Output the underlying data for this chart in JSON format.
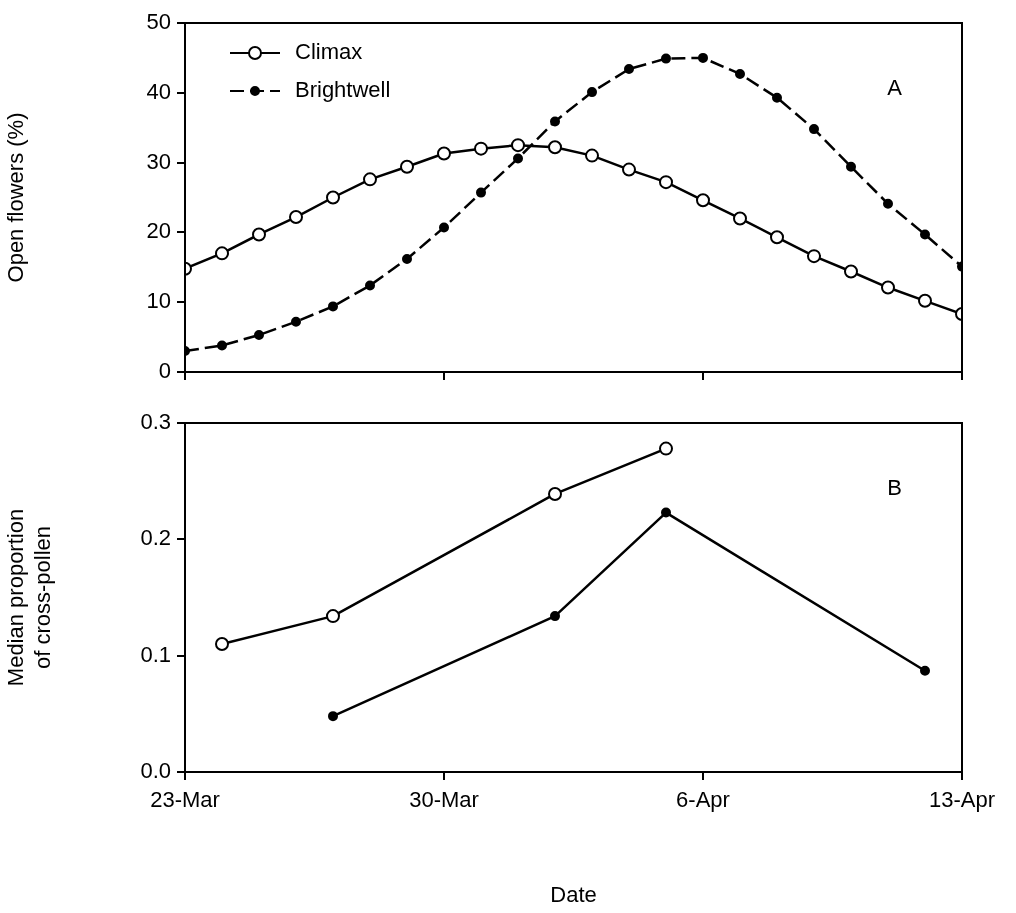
{
  "chart_data": [
    {
      "type": "line",
      "ylabel": "Open flowers (%)",
      "annotations": [
        "A"
      ],
      "legend": "top left",
      "marker": "circle",
      "grid": false,
      "tick_labels": "y",
      "x": [
        "--03-23",
        "--03-24",
        "--03-25",
        "--03-26",
        "--03-27",
        "--03-28",
        "--03-29",
        "--03-30",
        "--03-31",
        "--04-01",
        "--04-02",
        "--04-03",
        "--04-04",
        "--04-05",
        "--04-06",
        "--04-07",
        "--04-08",
        "--04-09",
        "--04-10",
        "--04-11",
        "--04-12",
        "--04-13"
      ],
      "xlim": [
        "--03-23",
        "--04-13"
      ],
      "xticks": [
        {
          "value": "--03-23",
          "label": null
        },
        {
          "value": "--03-30",
          "label": null
        },
        {
          "value": "--04-06",
          "label": null
        },
        {
          "value": "--04-13",
          "label": null
        }
      ],
      "ylim": [
        0,
        50
      ],
      "yticks": [
        0,
        10,
        20,
        30,
        40,
        50
      ],
      "series": [
        {
          "name": "Climax",
          "color": "#000000",
          "line_style": "solid",
          "values": [
            14.8,
            17,
            19.7,
            22.2,
            25,
            27.6,
            29.4,
            31.3,
            32,
            32.5,
            32.2,
            31,
            29,
            27.2,
            24.6,
            22,
            19.3,
            16.6,
            14.4,
            12.1,
            10.2,
            8.3
          ]
        },
        {
          "name": "Brightwell",
          "color": "#000000",
          "line_style": "dashed",
          "values": [
            3,
            3.8,
            5.3,
            7.2,
            9.4,
            12.4,
            16.2,
            20.7,
            25.7,
            30.6,
            35.9,
            40.1,
            43.4,
            44.9,
            45,
            42.7,
            39.3,
            34.8,
            29.4,
            24.1,
            19.7,
            15.1
          ]
        }
      ]
    },
    {
      "type": "line",
      "xlabel": "Date",
      "ylabel": "Median proportion of cross-pollen",
      "annotations": [
        "B"
      ],
      "legend": false,
      "marker": "circle",
      "grid": false,
      "xlim": [
        "--03-23",
        "--04-13"
      ],
      "xticks": [
        {
          "value": "--03-23",
          "label": "23-Mar"
        },
        {
          "value": "--03-30",
          "label": "30-Mar"
        },
        {
          "value": "--04-06",
          "label": "6-Apr"
        },
        {
          "value": "--04-13",
          "label": "13-Apr"
        }
      ],
      "ylim": [
        0,
        0.3
      ],
      "yticks": [
        {
          "value": 0,
          "label": "0.0"
        },
        0.1,
        0.2,
        0.3
      ],
      "series": [
        {
          "color": "#000000",
          "line_style": "solid",
          "x": [
            "--03-24",
            "--03-27",
            "--04-02",
            "--04-05"
          ],
          "values": [
            0.11,
            0.134,
            0.239,
            0.278
          ]
        },
        {
          "color": "#000000",
          "line_style": "solid",
          "x": [
            "--03-27",
            "--04-02",
            "--04-05",
            "--04-12"
          ],
          "values": [
            0.048,
            0.134,
            0.223,
            0.087
          ]
        }
      ]
    }
  ]
}
